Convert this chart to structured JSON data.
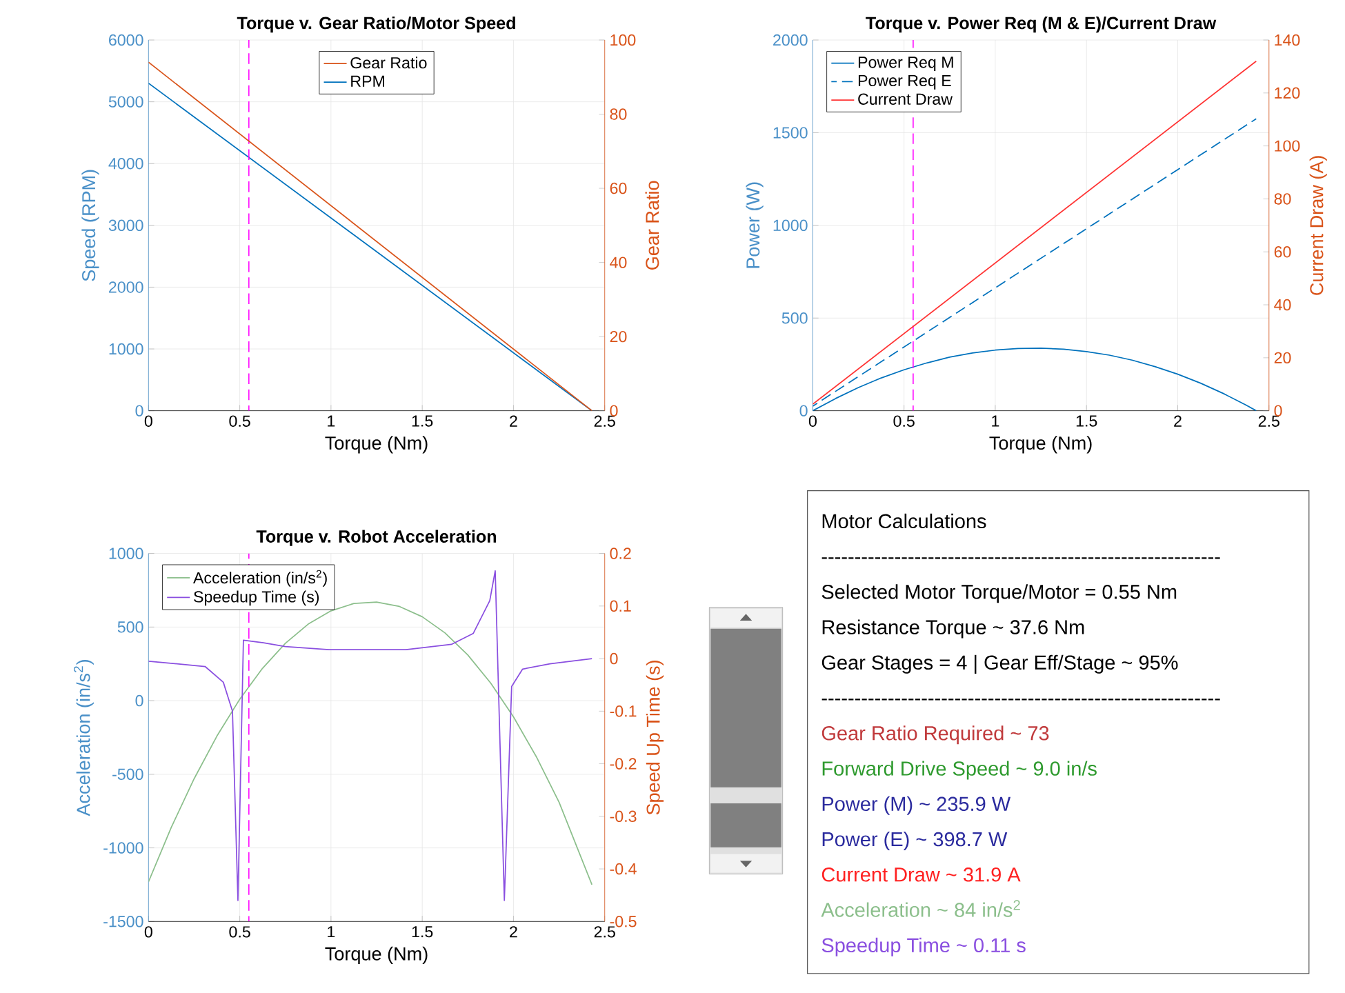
{
  "chart_data": [
    {
      "type": "line",
      "title": "Torque v. Gear Ratio/Motor Speed",
      "xlabel": "Torque (Nm)",
      "ylabel": "Speed (RPM)",
      "y2label": "Gear Ratio",
      "xlim": [
        0,
        2.5
      ],
      "xticks": [
        0,
        0.5,
        1,
        1.5,
        2,
        2.5
      ],
      "ylim": [
        0,
        6000
      ],
      "yticks": [
        0,
        1000,
        2000,
        3000,
        4000,
        5000,
        6000
      ],
      "y2lim": [
        0,
        100
      ],
      "y2ticks": [
        0,
        20,
        40,
        60,
        80,
        100
      ],
      "grid": true,
      "legend": "top",
      "ref_lines": [
        {
          "axis": "x",
          "value": 0.55,
          "color": "#ff00ff",
          "line_style": "dashed"
        }
      ],
      "series": [
        {
          "name": "Gear Ratio",
          "color": "#d95319",
          "axis": "y2",
          "x": [
            0,
            2.43
          ],
          "values": [
            94,
            0
          ]
        },
        {
          "name": "RPM",
          "color": "#0072bd",
          "x": [
            0,
            2.43
          ],
          "values": [
            5300,
            0
          ]
        }
      ]
    },
    {
      "type": "line",
      "title": "Torque v. Power Req (M & E)/Current Draw",
      "xlabel": "Torque (Nm)",
      "ylabel": "Power (W)",
      "y2label": "Current Draw (A)",
      "xlim": [
        0,
        2.5
      ],
      "xticks": [
        0,
        0.5,
        1,
        1.5,
        2,
        2.5
      ],
      "ylim": [
        0,
        2000
      ],
      "yticks": [
        0,
        500,
        1000,
        1500,
        2000
      ],
      "y2lim": [
        0,
        140
      ],
      "y2ticks": [
        0,
        20,
        40,
        60,
        80,
        100,
        120,
        140
      ],
      "grid": true,
      "legend": "top left",
      "ref_lines": [
        {
          "axis": "x",
          "value": 0.55,
          "color": "#ff00ff",
          "line_style": "dashed"
        }
      ],
      "series": [
        {
          "name": "Power Req M",
          "color": "#0072bd",
          "x": [
            0,
            0.125,
            0.25,
            0.375,
            0.5,
            0.625,
            0.75,
            0.875,
            1.0,
            1.125,
            1.25,
            1.375,
            1.5,
            1.625,
            1.75,
            1.875,
            2.0,
            2.125,
            2.25,
            2.375,
            2.43
          ],
          "values": [
            0,
            66,
            125,
            177,
            221,
            258,
            289,
            312,
            327,
            336,
            338,
            332,
            319,
            300,
            273,
            238,
            197,
            149,
            93,
            30,
            0
          ]
        },
        {
          "name": "Power Req E",
          "color": "#0072bd",
          "line_style": "dashed",
          "x": [
            0,
            2.43
          ],
          "values": [
            25,
            1575
          ]
        },
        {
          "name": "Current Draw",
          "color": "#ff3333",
          "axis": "y2",
          "x": [
            0,
            2.43
          ],
          "values": [
            2.5,
            132
          ]
        }
      ]
    },
    {
      "type": "line",
      "title": "Torque v. Robot Acceleration",
      "xlabel": "Torque (Nm)",
      "ylabel": "Acceleration (in/s$^{2}$)",
      "y2label": "Speed Up Time (s)",
      "xlim": [
        0,
        2.5
      ],
      "xticks": [
        0,
        0.5,
        1,
        1.5,
        2,
        2.5
      ],
      "ylim": [
        -1500,
        1000
      ],
      "yticks": [
        -1500,
        -1000,
        -500,
        0,
        500,
        1000
      ],
      "y2lim": [
        -0.5,
        0.2
      ],
      "y2ticks": [
        -0.5,
        -0.4,
        -0.3,
        -0.2,
        -0.1,
        0,
        0.1,
        0.2
      ],
      "grid": true,
      "legend": "top left",
      "ref_lines": [
        {
          "axis": "x",
          "value": 0.55,
          "color": "#ff00ff",
          "line_style": "dashed"
        }
      ],
      "series": [
        {
          "name": "Acceleration (in/s$^{2}$)",
          "color": "#8cbf8c",
          "x": [
            0,
            0.125,
            0.25,
            0.375,
            0.5,
            0.625,
            0.75,
            0.875,
            1.0,
            1.125,
            1.25,
            1.375,
            1.5,
            1.625,
            1.75,
            1.875,
            2.0,
            2.125,
            2.25,
            2.43
          ],
          "values": [
            -1230,
            -860,
            -530,
            -240,
            10,
            220,
            390,
            520,
            610,
            660,
            670,
            640,
            570,
            460,
            310,
            120,
            -110,
            -380,
            -690,
            -1250
          ]
        },
        {
          "name": "Speedup Time (s)",
          "color": "#8a4fe0",
          "axis": "y2",
          "x": [
            0,
            0.31,
            0.41,
            0.46,
            0.49,
            0.52,
            0.63,
            0.75,
            0.99,
            1.41,
            1.66,
            1.78,
            1.87,
            1.9,
            1.95,
            1.99,
            2.05,
            2.2,
            2.43
          ],
          "values": [
            -0.005,
            -0.015,
            -0.045,
            -0.1,
            -0.46,
            0.035,
            0.03,
            0.023,
            0.017,
            0.017,
            0.027,
            0.048,
            0.11,
            0.167,
            -0.46,
            -0.053,
            -0.02,
            -0.01,
            0
          ]
        }
      ]
    },
    {
      "type": "other",
      "title": "Motor Calculations",
      "annotations": [
        "------------------------------------------------------------",
        "Selected Motor Torque/Motor = 0.55 Nm",
        "Resistance Torque ~ 37.6 Nm",
        "Gear Stages = 4 | Gear Eff/Stage ~ 95%",
        "------------------------------------------------------------",
        "Gear Ratio Required ~ 73",
        "Forward Drive Speed ~ 9.0 in/s",
        "Power (M) ~ 235.9 W",
        "Power (E) ~ 398.7 W",
        "Current Draw ~ 31.9 A",
        "Acceleration ~ 84 in/s$^{2}$",
        "Speedup Time ~ 0.11 s"
      ],
      "colors": [
        "#000000",
        "#000000",
        "#000000",
        "#000000",
        "#000000",
        "#c0393b",
        "#2e9a2e",
        "#2b2b9e",
        "#2b2b9e",
        "#ff2020",
        "#8cbf8c",
        "#8a4fe0"
      ]
    }
  ]
}
